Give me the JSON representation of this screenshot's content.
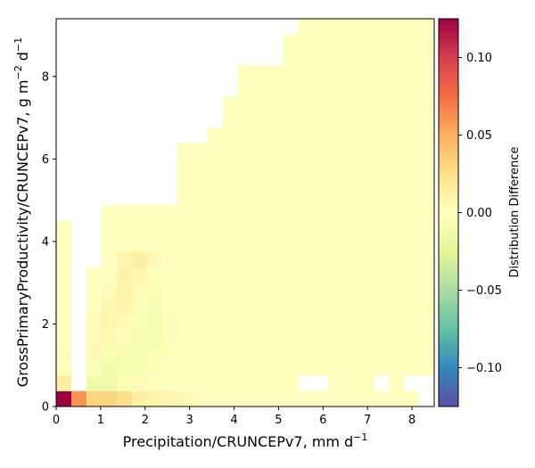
{
  "chart_data": {
    "type": "heatmap",
    "title": "",
    "xlabel": "Precipitation/CRUNCEPv7,  mm d",
    "xlabel_sup": "−1",
    "ylabel_main": "GrossPrimaryProductivity/CRUNCEPv7,  g m",
    "ylabel_sup1": "−2",
    "ylabel_mid": " d",
    "ylabel_sup2": "−1",
    "xlim": [
      0,
      8.5
    ],
    "ylim": [
      0,
      9.4
    ],
    "x_bin_width": 0.34,
    "y_bin_width": 0.376,
    "x_ticks": [
      0,
      1,
      2,
      3,
      4,
      5,
      6,
      7,
      8
    ],
    "x_tick_labels": [
      "0",
      "1",
      "2",
      "3",
      "4",
      "5",
      "6",
      "7",
      "8"
    ],
    "y_ticks": [
      0,
      2,
      4,
      6,
      8
    ],
    "y_tick_labels": [
      "0",
      "2",
      "4",
      "6",
      "8"
    ],
    "colorbar": {
      "label": "Distribution Difference",
      "colormap": "Spectral_r",
      "vmin": -0.125,
      "vmax": 0.125,
      "ticks": [
        0.1,
        0.05,
        0.0,
        -0.05,
        -0.1
      ],
      "tick_labels": [
        "0.10",
        "0.05",
        "0.00",
        "−0.05",
        "−0.10"
      ]
    },
    "grid": false,
    "baseline_value": 0.0,
    "column_max_y": [
      4.5,
      0.4,
      3.4,
      4.9,
      4.9,
      4.9,
      4.9,
      4.9,
      6.4,
      6.4,
      6.8,
      7.5,
      8.3,
      8.3,
      8.3,
      9.0,
      9.4,
      9.4,
      9.4,
      9.4,
      9.4,
      9.4,
      9.4,
      9.4,
      9.4
    ],
    "empty_cells": [
      [
        1,
        8
      ],
      [
        1,
        9
      ],
      [
        1,
        10
      ],
      [
        1,
        11
      ],
      [
        5,
        18
      ],
      [
        4,
        23
      ],
      [
        21,
        1
      ],
      [
        23,
        1
      ],
      [
        24,
        0
      ],
      [
        24,
        1
      ],
      [
        16,
        1
      ],
      [
        17,
        1
      ]
    ],
    "nonzero_cells": [
      {
        "x": 0.17,
        "y": 0.19,
        "value": 0.125
      },
      {
        "x": 0.51,
        "y": 0.19,
        "value": 0.06
      },
      {
        "x": 0.85,
        "y": 0.19,
        "value": 0.03
      },
      {
        "x": 1.19,
        "y": 0.19,
        "value": 0.03
      },
      {
        "x": 1.53,
        "y": 0.19,
        "value": 0.025
      },
      {
        "x": 1.87,
        "y": 0.19,
        "value": 0.012
      },
      {
        "x": 2.21,
        "y": 0.19,
        "value": 0.01
      },
      {
        "x": 2.55,
        "y": 0.19,
        "value": 0.008
      },
      {
        "x": 2.89,
        "y": 0.19,
        "value": 0.005
      },
      {
        "x": 0.17,
        "y": 0.56,
        "value": 0.015
      },
      {
        "x": 0.51,
        "y": 0.56,
        "value": 0.015
      },
      {
        "x": 0.85,
        "y": 0.56,
        "value": -0.015
      },
      {
        "x": 1.19,
        "y": 0.56,
        "value": -0.015
      },
      {
        "x": 1.53,
        "y": 0.56,
        "value": -0.005
      },
      {
        "x": 1.87,
        "y": 0.56,
        "value": 0.004
      },
      {
        "x": 0.51,
        "y": 0.94,
        "value": 0.01
      },
      {
        "x": 0.85,
        "y": 0.94,
        "value": -0.005
      },
      {
        "x": 1.19,
        "y": 0.94,
        "value": -0.012
      },
      {
        "x": 1.53,
        "y": 0.94,
        "value": -0.01
      },
      {
        "x": 1.87,
        "y": 0.94,
        "value": -0.008
      },
      {
        "x": 2.21,
        "y": 0.94,
        "value": -0.004
      },
      {
        "x": 0.85,
        "y": 1.32,
        "value": 0.005
      },
      {
        "x": 1.19,
        "y": 1.32,
        "value": -0.006
      },
      {
        "x": 1.53,
        "y": 1.32,
        "value": -0.01
      },
      {
        "x": 1.87,
        "y": 1.32,
        "value": -0.01
      },
      {
        "x": 2.21,
        "y": 1.32,
        "value": -0.006
      },
      {
        "x": 2.55,
        "y": 1.32,
        "value": -0.003
      },
      {
        "x": 1.19,
        "y": 1.69,
        "value": 0.006
      },
      {
        "x": 1.53,
        "y": 1.69,
        "value": -0.004
      },
      {
        "x": 1.87,
        "y": 1.69,
        "value": -0.008
      },
      {
        "x": 2.21,
        "y": 1.69,
        "value": -0.01
      },
      {
        "x": 2.55,
        "y": 1.69,
        "value": -0.004
      },
      {
        "x": 0.85,
        "y": 2.07,
        "value": 0.004
      },
      {
        "x": 1.19,
        "y": 2.07,
        "value": 0.008
      },
      {
        "x": 1.53,
        "y": 2.07,
        "value": 0.004
      },
      {
        "x": 1.87,
        "y": 2.07,
        "value": -0.006
      },
      {
        "x": 2.21,
        "y": 2.07,
        "value": -0.01
      },
      {
        "x": 2.55,
        "y": 2.07,
        "value": -0.004
      },
      {
        "x": 1.19,
        "y": 2.44,
        "value": 0.006
      },
      {
        "x": 1.53,
        "y": 2.44,
        "value": 0.01
      },
      {
        "x": 1.87,
        "y": 2.44,
        "value": -0.004
      },
      {
        "x": 2.21,
        "y": 2.44,
        "value": -0.008
      },
      {
        "x": 1.19,
        "y": 2.82,
        "value": 0.004
      },
      {
        "x": 1.53,
        "y": 2.82,
        "value": 0.01
      },
      {
        "x": 1.87,
        "y": 2.82,
        "value": 0.004
      },
      {
        "x": 2.21,
        "y": 2.82,
        "value": -0.006
      },
      {
        "x": 1.53,
        "y": 3.2,
        "value": 0.01
      },
      {
        "x": 1.87,
        "y": 3.2,
        "value": 0.006
      },
      {
        "x": 2.21,
        "y": 3.2,
        "value": -0.003
      },
      {
        "x": 1.53,
        "y": 3.57,
        "value": 0.008
      },
      {
        "x": 1.87,
        "y": 3.57,
        "value": 0.012
      },
      {
        "x": 2.21,
        "y": 3.57,
        "value": 0.005
      },
      {
        "x": 0.85,
        "y": 1.69,
        "value": 0.004
      },
      {
        "x": 0.17,
        "y": 1.32,
        "value": 0.003
      }
    ]
  }
}
